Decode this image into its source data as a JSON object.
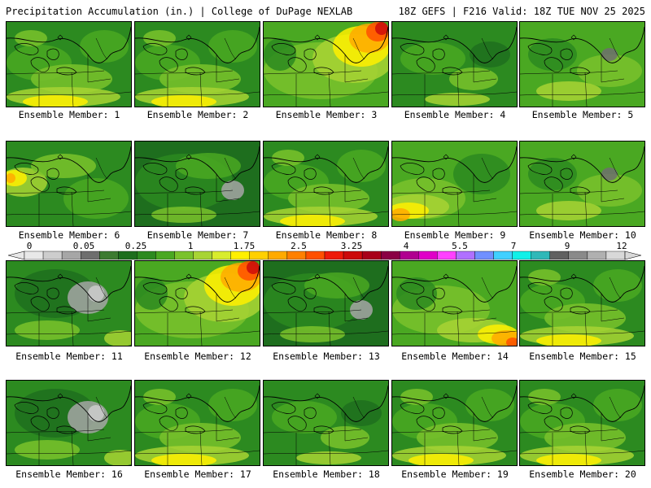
{
  "header": {
    "left": "Precipitation Accumulation (in.) | College of DuPage NEXLAB",
    "right": "18Z GEFS | F216 Valid: 18Z TUE NOV 25 2025"
  },
  "legend": {
    "labels": [
      "0",
      "0.05",
      "0.25",
      "1",
      "1.75",
      "2.5",
      "3.25",
      "4",
      "5.5",
      "7",
      "9",
      "12"
    ],
    "colors": [
      "#e8e8e8",
      "#cdcdcd",
      "#a6a6a6",
      "#6e6e6e",
      "#3c7b30",
      "#1e6e1e",
      "#2c8a20",
      "#4aa822",
      "#7ac22c",
      "#a8d434",
      "#d8ec2e",
      "#fff000",
      "#ffd000",
      "#ffaa00",
      "#ff8000",
      "#ff5000",
      "#ee1a0a",
      "#cc0a0a",
      "#a80018",
      "#8a0044",
      "#b00090",
      "#e000c8",
      "#ff40ff",
      "#b070ff",
      "#7090ff",
      "#40d0ff",
      "#10f0e8",
      "#30b8b8",
      "#606060",
      "#8a8a8a",
      "#b0b0b0",
      "#d8d8d8"
    ]
  },
  "members": [
    {
      "label": "Ensemble Member: 1",
      "scheme": "wet-south"
    },
    {
      "label": "Ensemble Member: 2",
      "scheme": "wet-south"
    },
    {
      "label": "Ensemble Member: 3",
      "scheme": "heavy-northeast"
    },
    {
      "label": "Ensemble Member: 4",
      "scheme": "green"
    },
    {
      "label": "Ensemble Member: 5",
      "scheme": "green-dry"
    },
    {
      "label": "Ensemble Member: 6",
      "scheme": "wet-west"
    },
    {
      "label": "Ensemble Member: 7",
      "scheme": "green-grey"
    },
    {
      "label": "Ensemble Member: 8",
      "scheme": "wet-south"
    },
    {
      "label": "Ensemble Member: 9",
      "scheme": "wet-southwest"
    },
    {
      "label": "Ensemble Member: 10",
      "scheme": "green-dry"
    },
    {
      "label": "Ensemble Member: 11",
      "scheme": "grey-north"
    },
    {
      "label": "Ensemble Member: 12",
      "scheme": "heavy-northeast"
    },
    {
      "label": "Ensemble Member: 13",
      "scheme": "green-grey"
    },
    {
      "label": "Ensemble Member: 14",
      "scheme": "wet-southeast"
    },
    {
      "label": "Ensemble Member: 15",
      "scheme": "wet-south"
    },
    {
      "label": "Ensemble Member: 16",
      "scheme": "grey-north"
    },
    {
      "label": "Ensemble Member: 17",
      "scheme": "wet-south"
    },
    {
      "label": "Ensemble Member: 18",
      "scheme": "green"
    },
    {
      "label": "Ensemble Member: 19",
      "scheme": "wet-south"
    },
    {
      "label": "Ensemble Member: 20",
      "scheme": "wet-south"
    }
  ]
}
